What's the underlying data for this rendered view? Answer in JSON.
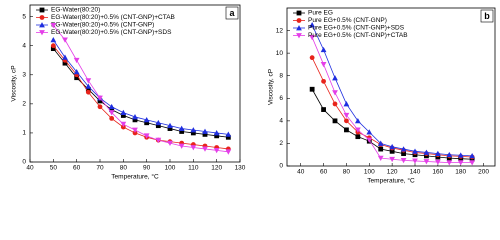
{
  "chart_data": [
    {
      "type": "line",
      "panel_label": "a",
      "x_label": "Temperature, °C",
      "y_label": "Viscosity, cP",
      "x": [
        50,
        55,
        60,
        65,
        70,
        75,
        80,
        85,
        90,
        95,
        100,
        105,
        110,
        115,
        120,
        125
      ],
      "xlim": [
        40,
        130
      ],
      "xticks": [
        40,
        50,
        60,
        70,
        80,
        90,
        100,
        110,
        120,
        130
      ],
      "ylim": [
        0,
        5.4
      ],
      "yticks": [
        0,
        1,
        2,
        3,
        4,
        5
      ],
      "legend": "upper-left",
      "series": [
        {
          "name": "EG-Water(80:20)",
          "color": "#000000",
          "marker": "square",
          "values": [
            3.9,
            3.4,
            2.9,
            2.5,
            2.1,
            1.8,
            1.6,
            1.45,
            1.35,
            1.25,
            1.15,
            1.05,
            1.0,
            0.95,
            0.9,
            0.85
          ]
        },
        {
          "name": "EG-Water(80:20)+0.5% (CNT-GNP)+CTAB",
          "color": "#e8231b",
          "marker": "circle",
          "values": [
            4.0,
            3.5,
            3.0,
            2.4,
            1.9,
            1.5,
            1.2,
            1.0,
            0.85,
            0.75,
            0.7,
            0.65,
            0.6,
            0.55,
            0.5,
            0.45
          ]
        },
        {
          "name": "EG-Water(80:20)+0.5% (CNT-GNP)",
          "color": "#1f2ee0",
          "marker": "triangle",
          "values": [
            4.2,
            3.6,
            3.1,
            2.6,
            2.2,
            1.9,
            1.7,
            1.55,
            1.45,
            1.35,
            1.25,
            1.15,
            1.1,
            1.05,
            1.0,
            0.95
          ]
        },
        {
          "name": "EG-Water(80:20)+0.5% (CNT-GNP)+SDS",
          "color": "#e43fe8",
          "marker": "triangle-down",
          "values": [
            4.7,
            4.2,
            3.5,
            2.8,
            2.2,
            1.7,
            1.3,
            1.1,
            0.9,
            0.75,
            0.65,
            0.55,
            0.5,
            0.45,
            0.4,
            0.35
          ]
        }
      ]
    },
    {
      "type": "line",
      "panel_label": "b",
      "x_label": "Temperature, °C",
      "y_label": "Viscosity, cP",
      "x": [
        50,
        60,
        70,
        80,
        90,
        100,
        110,
        120,
        130,
        140,
        150,
        160,
        170,
        180,
        190
      ],
      "xlim": [
        28,
        210
      ],
      "xticks": [
        40,
        60,
        80,
        100,
        120,
        140,
        160,
        180,
        200
      ],
      "ylim": [
        0,
        14
      ],
      "yticks": [
        0,
        2,
        4,
        6,
        8,
        10,
        12
      ],
      "legend": "upper-left",
      "series": [
        {
          "name": "Pure EG",
          "color": "#000000",
          "marker": "square",
          "values": [
            6.8,
            5.0,
            4.0,
            3.2,
            2.6,
            2.2,
            1.5,
            1.3,
            1.1,
            1.0,
            0.9,
            0.8,
            0.7,
            0.65,
            0.6
          ]
        },
        {
          "name": "Pure EG+0.5% (CNT-GNP)",
          "color": "#e8231b",
          "marker": "circle",
          "values": [
            9.6,
            7.5,
            5.5,
            4.0,
            3.0,
            2.5,
            1.9,
            1.6,
            1.4,
            1.2,
            1.1,
            1.0,
            0.9,
            0.85,
            0.8
          ]
        },
        {
          "name": "Pure EG+0.5% (CNT-GNP)+SDS",
          "color": "#1f2ee0",
          "marker": "triangle",
          "values": [
            12.5,
            10.3,
            7.8,
            5.5,
            4.0,
            3.0,
            2.0,
            1.7,
            1.5,
            1.3,
            1.2,
            1.1,
            1.0,
            0.95,
            0.9
          ]
        },
        {
          "name": "Pure EG+0.5% (CNT-GNP)+CTAB",
          "color": "#e43fe8",
          "marker": "triangle-down",
          "values": [
            11.4,
            9.0,
            6.5,
            4.5,
            3.2,
            2.3,
            0.7,
            0.6,
            0.5,
            0.45,
            0.4,
            0.35,
            0.3,
            0.3,
            0.3
          ]
        }
      ]
    }
  ]
}
